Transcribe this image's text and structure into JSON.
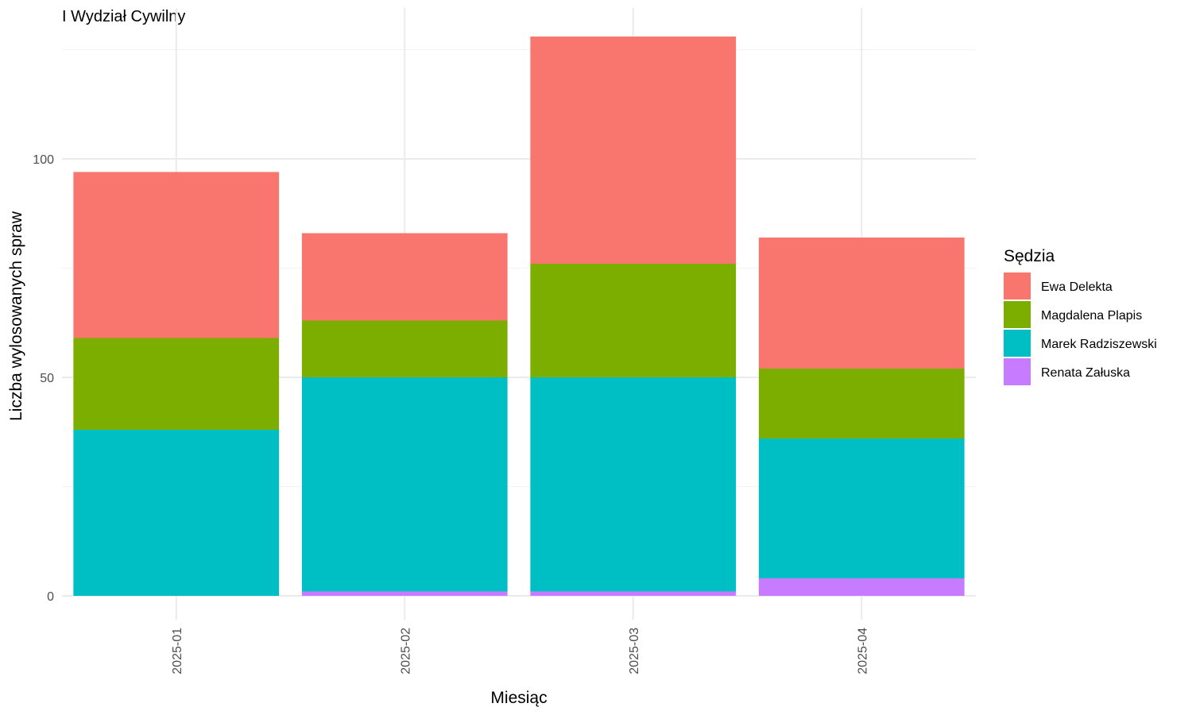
{
  "chart_data": {
    "type": "bar",
    "stacked": true,
    "title": "I Wydział Cywilny",
    "xlabel": "Miesiąc",
    "ylabel": "Liczba wylosowanych spraw",
    "categories": [
      "2025-01",
      "2025-02",
      "2025-03",
      "2025-04"
    ],
    "ylim": [
      0,
      130
    ],
    "yticks": [
      0,
      50,
      100
    ],
    "grid": true,
    "legend": {
      "title": "Sędzia",
      "position": "right"
    },
    "series": [
      {
        "name": "Renata Załuska",
        "color": "#C77CFF",
        "values": [
          0,
          1,
          1,
          4
        ]
      },
      {
        "name": "Marek Radziszewski",
        "color": "#00BFC4",
        "values": [
          38,
          49,
          49,
          32
        ]
      },
      {
        "name": "Magdalena Plapis",
        "color": "#7CAE00",
        "values": [
          21,
          13,
          26,
          16
        ]
      },
      {
        "name": "Ewa Delekta",
        "color": "#F8766D",
        "values": [
          38,
          20,
          52,
          30
        ]
      }
    ]
  }
}
